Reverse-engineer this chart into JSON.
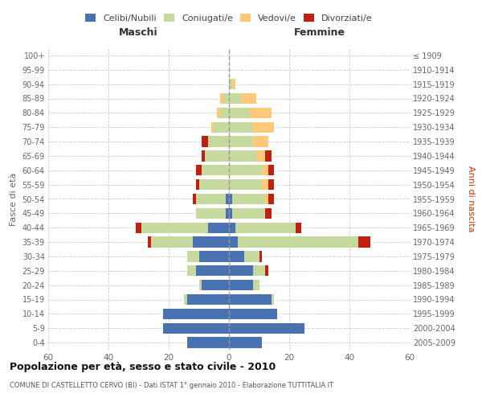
{
  "age_groups_bottom_to_top": [
    "0-4",
    "5-9",
    "10-14",
    "15-19",
    "20-24",
    "25-29",
    "30-34",
    "35-39",
    "40-44",
    "45-49",
    "50-54",
    "55-59",
    "60-64",
    "65-69",
    "70-74",
    "75-79",
    "80-84",
    "85-89",
    "90-94",
    "95-99",
    "100+"
  ],
  "birth_years_bottom_to_top": [
    "2005-2009",
    "2000-2004",
    "1995-1999",
    "1990-1994",
    "1985-1989",
    "1980-1984",
    "1975-1979",
    "1970-1974",
    "1965-1969",
    "1960-1964",
    "1955-1959",
    "1950-1954",
    "1945-1949",
    "1940-1944",
    "1935-1939",
    "1930-1934",
    "1925-1929",
    "1920-1924",
    "1915-1919",
    "1910-1914",
    "≤ 1909"
  ],
  "maschi": {
    "celibi": [
      14,
      22,
      22,
      14,
      9,
      11,
      10,
      12,
      7,
      1,
      1,
      0,
      0,
      0,
      0,
      0,
      0,
      0,
      0,
      0,
      0
    ],
    "coniugati": [
      0,
      0,
      0,
      1,
      1,
      3,
      4,
      14,
      22,
      10,
      10,
      10,
      9,
      8,
      7,
      5,
      3,
      2,
      0,
      0,
      0
    ],
    "vedovi": [
      0,
      0,
      0,
      0,
      0,
      0,
      0,
      0,
      0,
      0,
      0,
      0,
      0,
      0,
      0,
      1,
      1,
      1,
      0,
      0,
      0
    ],
    "divorziati": [
      0,
      0,
      0,
      0,
      0,
      0,
      0,
      1,
      2,
      0,
      1,
      1,
      2,
      1,
      2,
      0,
      0,
      0,
      0,
      0,
      0
    ]
  },
  "femmine": {
    "nubili": [
      11,
      25,
      16,
      14,
      8,
      8,
      5,
      3,
      2,
      1,
      1,
      0,
      0,
      0,
      0,
      0,
      0,
      0,
      0,
      0,
      0
    ],
    "coniugate": [
      0,
      0,
      0,
      1,
      2,
      4,
      5,
      40,
      20,
      11,
      11,
      11,
      11,
      9,
      8,
      8,
      7,
      4,
      1,
      0,
      0
    ],
    "vedove": [
      0,
      0,
      0,
      0,
      0,
      0,
      0,
      0,
      0,
      0,
      1,
      2,
      2,
      3,
      5,
      7,
      7,
      5,
      1,
      0,
      0
    ],
    "divorziate": [
      0,
      0,
      0,
      0,
      0,
      1,
      1,
      4,
      2,
      2,
      2,
      2,
      2,
      2,
      0,
      0,
      0,
      0,
      0,
      0,
      0
    ]
  },
  "colors": {
    "celibi": "#4a72b0",
    "coniugati": "#c6d99f",
    "vedovi": "#ffc97a",
    "divorziati": "#c0200f"
  },
  "xlim": 60,
  "title": "Popolazione per età, sesso e stato civile - 2010",
  "subtitle": "COMUNE DI CASTELLETTO CERVO (BI) - Dati ISTAT 1° gennaio 2010 - Elaborazione TUTTITALIA.IT",
  "ylabel_left": "Fasce di età",
  "ylabel_right": "Anni di nascita",
  "legend_labels": [
    "Celibi/Nubili",
    "Coniugati/e",
    "Vedovi/e",
    "Divorziati/e"
  ],
  "maschi_label": "Maschi",
  "femmine_label": "Femmine",
  "background_color": "#ffffff",
  "grid_color": "#cccccc",
  "bar_height": 0.75
}
